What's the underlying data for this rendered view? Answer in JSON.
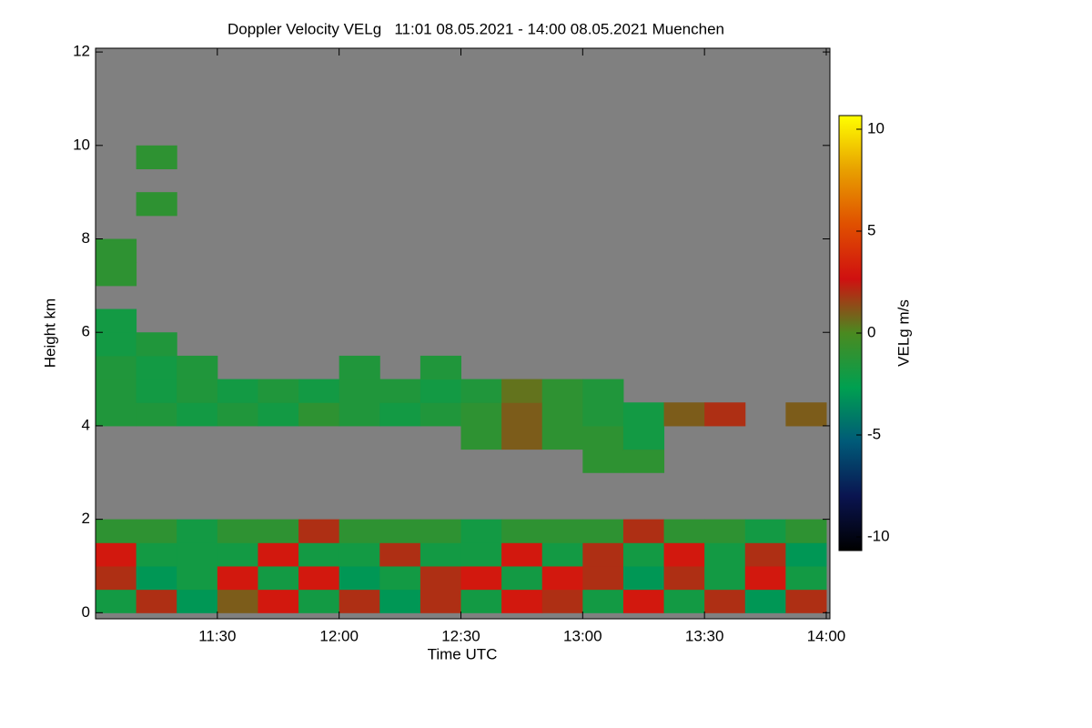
{
  "chart_data": {
    "type": "heatmap",
    "title": "Doppler Velocity VELg   11:01 08.05.2021 - 14:00 08.05.2021 Muenchen",
    "x_label": "Time UTC",
    "y_label": "Height km",
    "colorbar_label": "VELg m/s",
    "xlim": [
      660,
      840.9
    ],
    "xticks": [
      {
        "value": 690,
        "label": "11:30"
      },
      {
        "value": 720,
        "label": "12:00"
      },
      {
        "value": 750,
        "label": "12:30"
      },
      {
        "value": 780,
        "label": "13:00"
      },
      {
        "value": 810,
        "label": "13:30"
      },
      {
        "value": 840,
        "label": "14:00"
      }
    ],
    "ylim": [
      -0.13,
      12.08
    ],
    "yticks": [
      0,
      2,
      4,
      6,
      8,
      10,
      12
    ],
    "clim": [
      -10.67,
      10.67
    ],
    "cticks": [
      -10,
      -5,
      0,
      5,
      10
    ],
    "colormap": [
      "#000000",
      "#0a1450",
      "#005a78",
      "#00a050",
      "#4a8a20",
      "#d01010",
      "#e05000",
      "#e8a000",
      "#ffff00"
    ],
    "nodata_color": "#808080",
    "x_bins": [
      660,
      670,
      680,
      690,
      700,
      710,
      720,
      730,
      740,
      750,
      760,
      770,
      780,
      790,
      800,
      810,
      820,
      830,
      840
    ],
    "y_bins": [
      0,
      0.5,
      1,
      1.5,
      2,
      2.5,
      3,
      3.5,
      4,
      4.5,
      5,
      5.5,
      6,
      6.5,
      7,
      7.5,
      8,
      8.5,
      9,
      9.5,
      10,
      10.5,
      11,
      11.5,
      12
    ],
    "values": [
      [
        -2,
        2,
        -3,
        1,
        3,
        -2,
        2,
        -3,
        2,
        -2,
        3,
        2,
        -2,
        3,
        -2,
        2,
        -3,
        2
      ],
      [
        2,
        -3,
        -2,
        3,
        -2,
        3,
        -3,
        -2,
        2,
        3,
        -2,
        3,
        2,
        -3,
        2,
        -2,
        3,
        -2
      ],
      [
        3,
        -2,
        -2,
        -2,
        3,
        -2,
        -2,
        2,
        -2,
        -2,
        3,
        -2,
        2,
        -2,
        3,
        -2,
        2,
        -3
      ],
      [
        -1,
        -1,
        -2,
        -1,
        -1,
        2,
        -1,
        -1,
        -1,
        -2,
        -1,
        -1,
        -1,
        2,
        -1,
        -1,
        -2,
        -1
      ],
      [
        null,
        null,
        null,
        null,
        null,
        null,
        null,
        null,
        null,
        null,
        null,
        null,
        null,
        null,
        null,
        null,
        null,
        null
      ],
      [
        null,
        null,
        null,
        null,
        null,
        null,
        null,
        null,
        null,
        null,
        null,
        null,
        null,
        null,
        null,
        null,
        null,
        null
      ],
      [
        null,
        null,
        null,
        null,
        null,
        null,
        null,
        null,
        null,
        null,
        null,
        null,
        -1,
        -1,
        null,
        null,
        null,
        null
      ],
      [
        null,
        null,
        null,
        null,
        null,
        null,
        null,
        null,
        null,
        -1,
        1,
        -1,
        -1,
        -2,
        null,
        null,
        null,
        null
      ],
      [
        -1.5,
        -1.5,
        -2,
        -1.5,
        -2,
        -1,
        -1.5,
        -2,
        -1.5,
        -1,
        1,
        -1,
        -1.5,
        -2,
        1,
        2,
        null,
        1
      ],
      [
        -1.5,
        -2,
        -1.5,
        -2,
        -1.5,
        -2,
        -1.5,
        -1.5,
        -2,
        -1.5,
        0.5,
        -1,
        -1.5,
        null,
        null,
        null,
        null,
        null
      ],
      [
        -1.5,
        -2,
        -1.5,
        null,
        null,
        null,
        -1.5,
        null,
        -1.5,
        null,
        null,
        null,
        null,
        null,
        null,
        null,
        null,
        null
      ],
      [
        -2,
        -1.5,
        null,
        null,
        null,
        null,
        null,
        null,
        null,
        null,
        null,
        null,
        null,
        null,
        null,
        null,
        null,
        null
      ],
      [
        -2,
        null,
        null,
        null,
        null,
        null,
        null,
        null,
        null,
        null,
        null,
        null,
        null,
        null,
        null,
        null,
        null,
        null
      ],
      [
        null,
        null,
        null,
        null,
        null,
        null,
        null,
        null,
        null,
        null,
        null,
        null,
        null,
        null,
        null,
        null,
        null,
        null
      ],
      [
        -1,
        null,
        null,
        null,
        null,
        null,
        null,
        null,
        null,
        null,
        null,
        null,
        null,
        null,
        null,
        null,
        null,
        null
      ],
      [
        -1,
        null,
        null,
        null,
        null,
        null,
        null,
        null,
        null,
        null,
        null,
        null,
        null,
        null,
        null,
        null,
        null,
        null
      ],
      [
        null,
        null,
        null,
        null,
        null,
        null,
        null,
        null,
        null,
        null,
        null,
        null,
        null,
        null,
        null,
        null,
        null,
        null
      ],
      [
        null,
        -1,
        null,
        null,
        null,
        null,
        null,
        null,
        null,
        null,
        null,
        null,
        null,
        null,
        null,
        null,
        null,
        null
      ],
      [
        null,
        null,
        null,
        null,
        null,
        null,
        null,
        null,
        null,
        null,
        null,
        null,
        null,
        null,
        null,
        null,
        null,
        null
      ],
      [
        null,
        -1,
        null,
        null,
        null,
        null,
        null,
        null,
        null,
        null,
        null,
        null,
        null,
        null,
        null,
        null,
        null,
        null
      ],
      [
        null,
        null,
        null,
        null,
        null,
        null,
        null,
        null,
        null,
        null,
        null,
        null,
        null,
        null,
        null,
        null,
        null,
        null
      ],
      [
        null,
        null,
        null,
        null,
        null,
        null,
        null,
        null,
        null,
        null,
        null,
        null,
        null,
        null,
        null,
        null,
        null,
        null
      ],
      [
        null,
        null,
        null,
        null,
        null,
        null,
        null,
        null,
        null,
        null,
        null,
        null,
        null,
        null,
        null,
        null,
        null,
        null
      ],
      [
        null,
        null,
        null,
        null,
        null,
        null,
        null,
        null,
        null,
        null,
        null,
        null,
        null,
        null,
        null,
        null,
        null,
        null
      ]
    ]
  }
}
